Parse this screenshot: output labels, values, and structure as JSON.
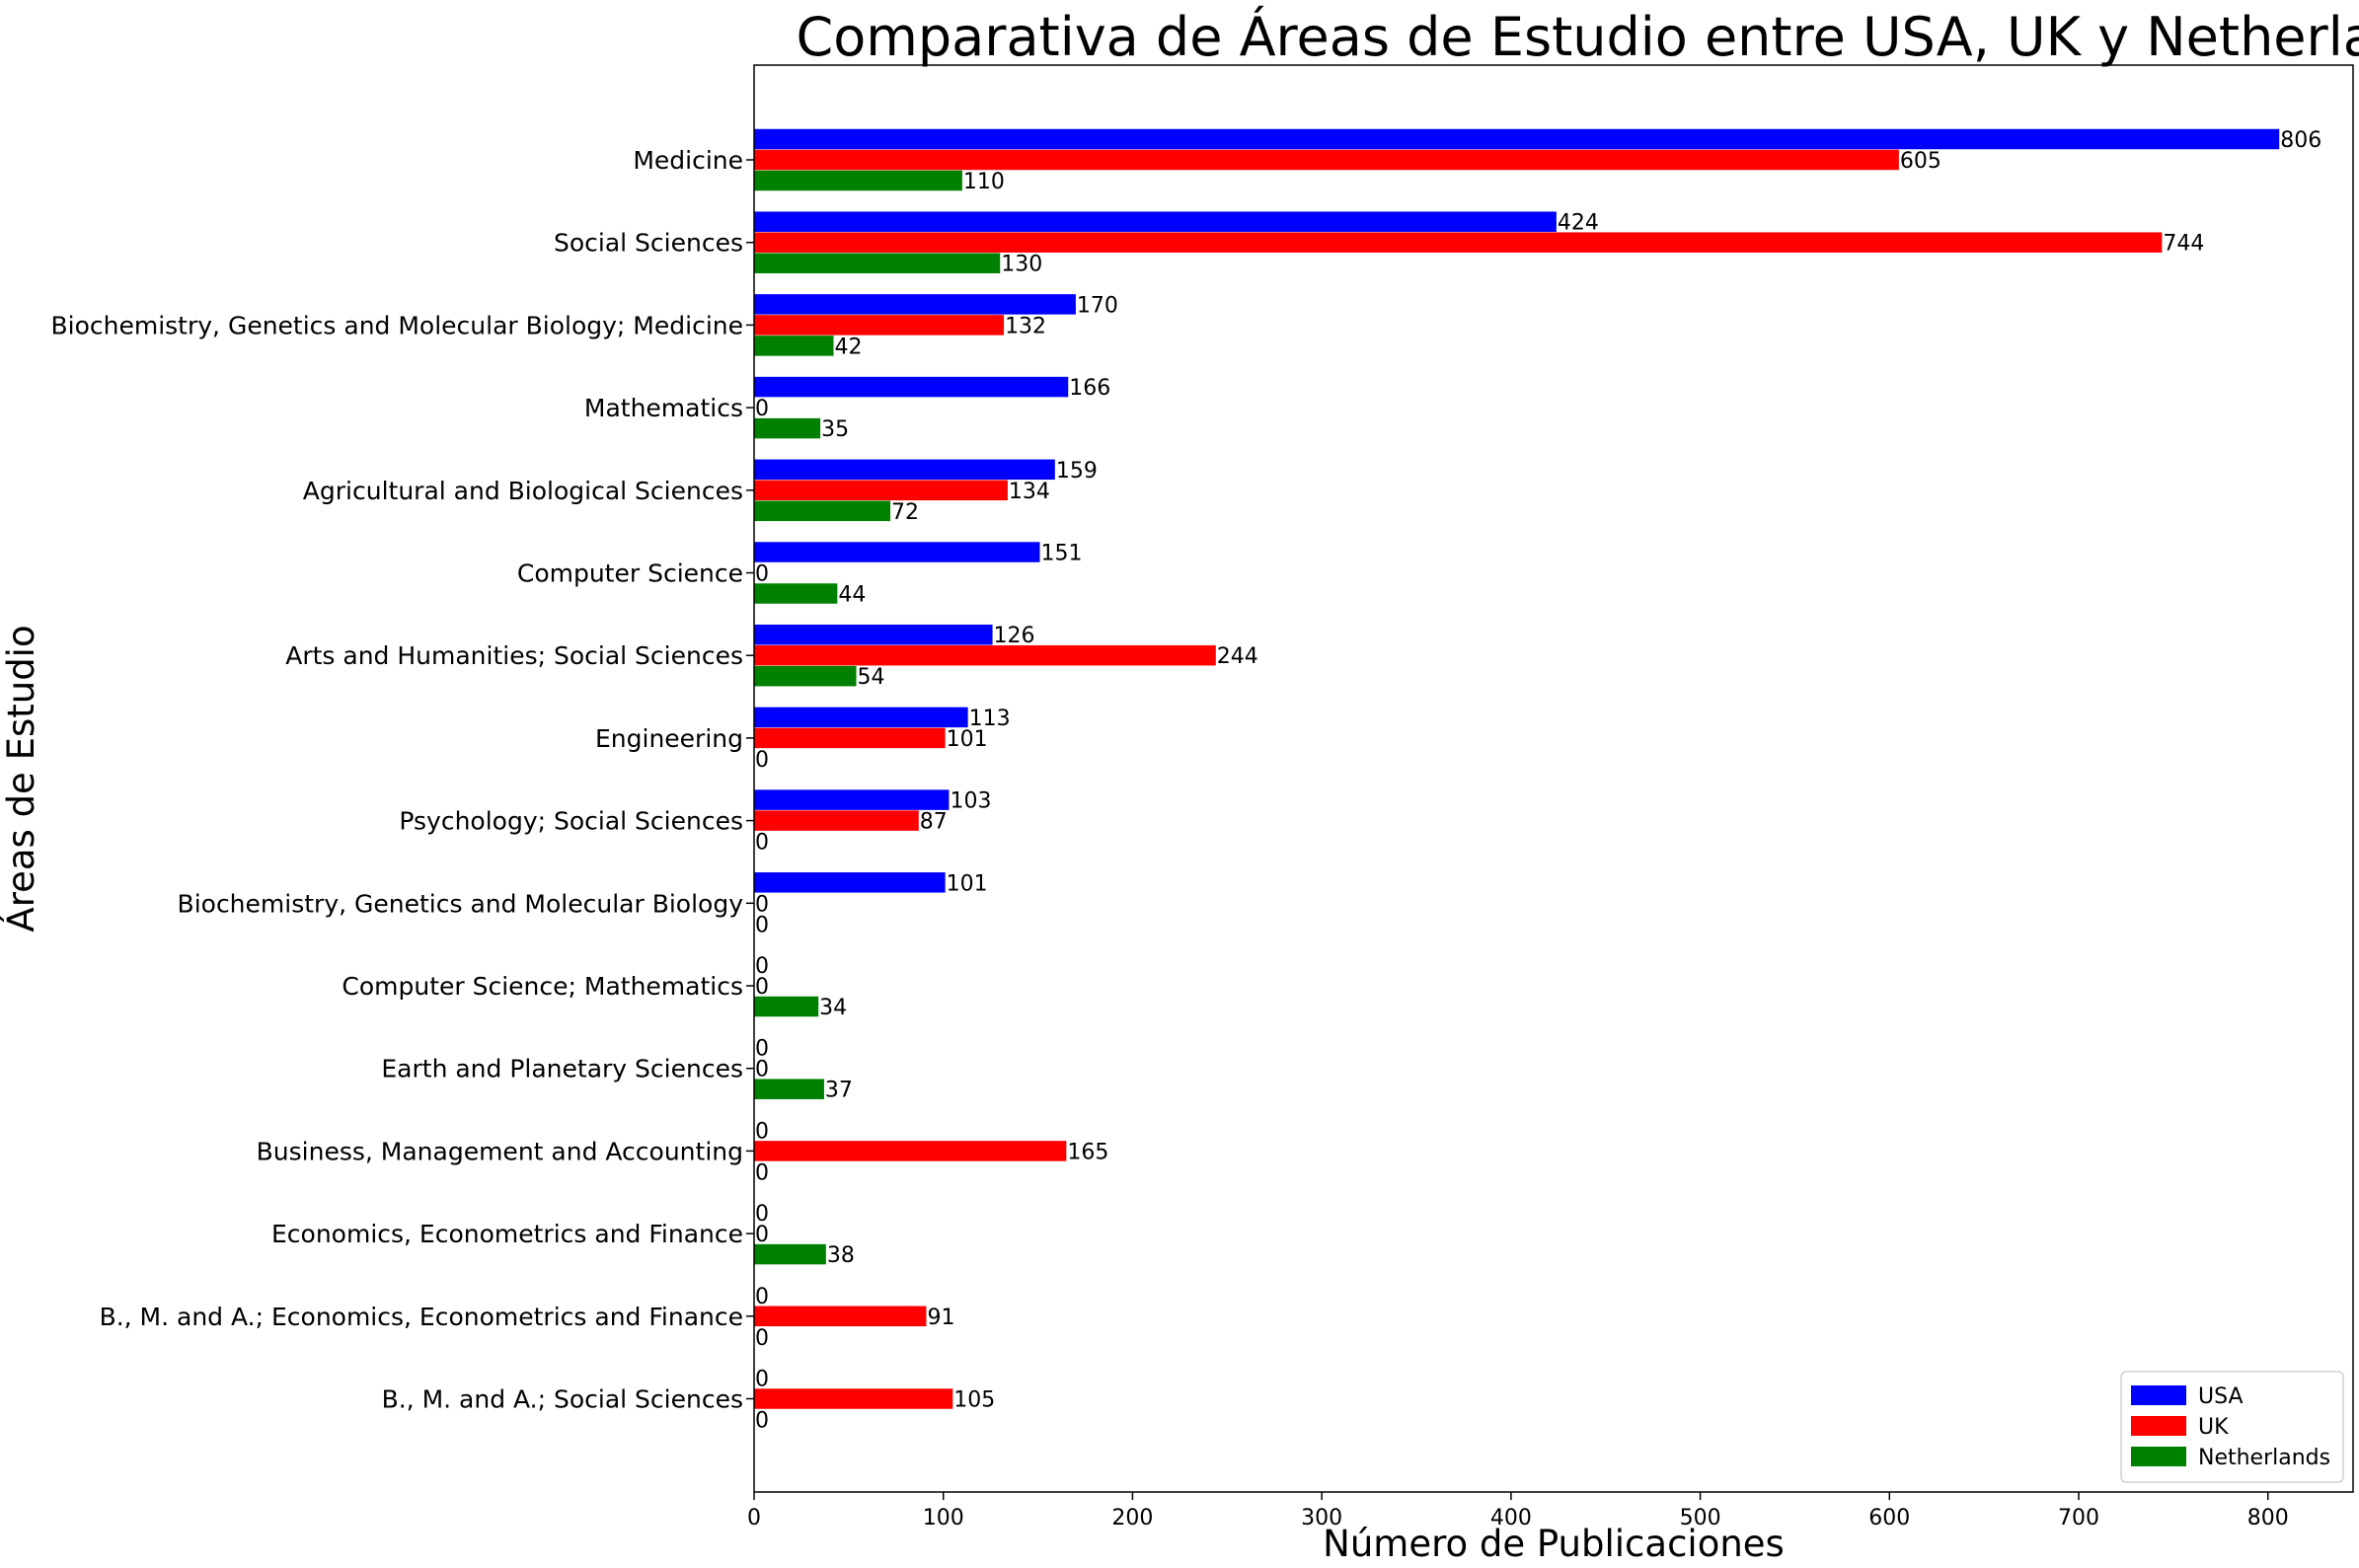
{
  "chart_data": {
    "type": "bar",
    "orientation": "horizontal",
    "title": "Comparativa de Áreas de Estudio entre USA, UK y Netherlands",
    "xlabel": "Número de Publicaciones",
    "ylabel": "Áreas de Estudio",
    "xlim": [
      0,
      845
    ],
    "x_ticks": [
      0,
      100,
      200,
      300,
      400,
      500,
      600,
      700,
      800
    ],
    "categories": [
      "Medicine",
      "Social Sciences",
      "Biochemistry, Genetics and Molecular Biology; Medicine",
      "Mathematics",
      "Agricultural and Biological Sciences",
      "Computer Science",
      "Arts and Humanities; Social Sciences",
      "Engineering",
      "Psychology; Social Sciences",
      "Biochemistry, Genetics and Molecular Biology",
      "Computer Science; Mathematics",
      "Earth and Planetary Sciences",
      "Business, Management and Accounting",
      "Economics, Econometrics and Finance",
      "B., M. and A.; Economics, Econometrics and Finance",
      "B., M. and A.; Social Sciences"
    ],
    "series": [
      {
        "name": "USA",
        "color": "#0000ff",
        "values": [
          806,
          424,
          170,
          166,
          159,
          151,
          126,
          113,
          103,
          101,
          0,
          0,
          0,
          0,
          0,
          0
        ]
      },
      {
        "name": "UK",
        "color": "#ff0000",
        "values": [
          605,
          744,
          132,
          0,
          134,
          0,
          244,
          101,
          87,
          0,
          0,
          0,
          165,
          0,
          91,
          105
        ]
      },
      {
        "name": "Netherlands",
        "color": "#008000",
        "values": [
          110,
          130,
          42,
          35,
          72,
          44,
          54,
          0,
          0,
          0,
          34,
          37,
          0,
          38,
          0,
          0
        ]
      }
    ],
    "grid": false,
    "legend_position": "bottom-right"
  }
}
